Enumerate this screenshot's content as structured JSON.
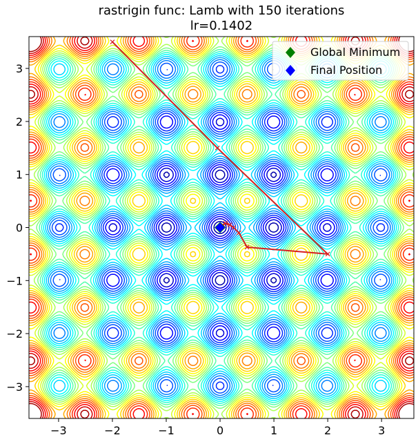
{
  "chart_data": {
    "type": "contour",
    "title_line1": "rastrigin func: Lamb with 150 iterations",
    "title_line2": "lr=0.1402",
    "xlim": [
      -3.55,
      3.6
    ],
    "ylim": [
      -3.6,
      3.6
    ],
    "xticks": [
      -3,
      -2,
      -1,
      0,
      1,
      2,
      3
    ],
    "yticks": [
      -3,
      -2,
      -1,
      0,
      1,
      2,
      3
    ],
    "tick_labels_x": [
      "−3",
      "−2",
      "−1",
      "0",
      "1",
      "2",
      "3"
    ],
    "tick_labels_y": [
      "−3",
      "−2",
      "−1",
      "0",
      "1",
      "2",
      "3"
    ],
    "colormap": "jet",
    "function": "rastrigin",
    "path": [
      [
        -2.0,
        3.5
      ],
      [
        -0.05,
        1.5
      ],
      [
        2.0,
        -0.5
      ],
      [
        0.5,
        -0.37
      ],
      [
        0.35,
        -0.1
      ],
      [
        0.25,
        0.0
      ],
      [
        0.18,
        0.05
      ],
      [
        0.1,
        0.08
      ],
      [
        0.05,
        0.05
      ],
      [
        0.0,
        0.0
      ]
    ],
    "path_color": "#d62020",
    "global_minimum": [
      0.0,
      0.0
    ],
    "final_position": [
      0.0,
      0.0
    ],
    "legend": [
      {
        "label": "Global Minimum",
        "color": "#008000",
        "marker": "diamond"
      },
      {
        "label": "Final Position",
        "color": "#0000ff",
        "marker": "diamond"
      }
    ],
    "legend_position": "top-right",
    "grid": false
  }
}
